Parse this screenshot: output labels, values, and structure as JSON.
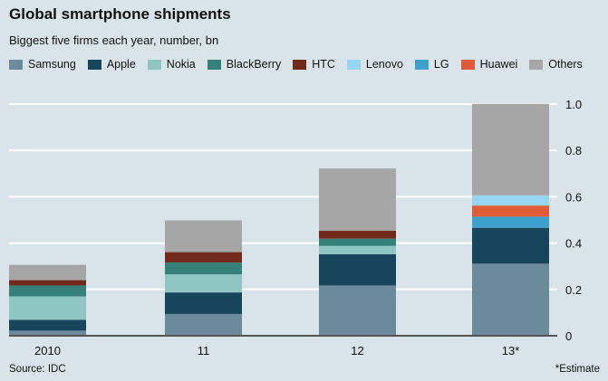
{
  "chart_data": {
    "type": "bar",
    "stacked": true,
    "title": "Global smartphone shipments",
    "subtitle": "Biggest five firms each year, number, bn",
    "categories": [
      "2010",
      "11",
      "12",
      "13*"
    ],
    "series": [
      {
        "name": "Samsung",
        "color": "#6b8a9b",
        "values": [
          0.022,
          0.094,
          0.217,
          0.311
        ]
      },
      {
        "name": "Apple",
        "color": "#17455b",
        "values": [
          0.047,
          0.093,
          0.135,
          0.155
        ]
      },
      {
        "name": "Nokia",
        "color": "#8fc6c4",
        "values": [
          0.101,
          0.078,
          0.036,
          0
        ]
      },
      {
        "name": "BlackBerry",
        "color": "#35817a",
        "values": [
          0.047,
          0.051,
          0.031,
          0
        ]
      },
      {
        "name": "HTC",
        "color": "#722b1a",
        "values": [
          0.023,
          0.045,
          0.034,
          0
        ]
      },
      {
        "name": "Lenovo",
        "color": "#97d6f0",
        "values": [
          0,
          0,
          0,
          0.044
        ]
      },
      {
        "name": "LG",
        "color": "#3ea0cc",
        "values": [
          0,
          0,
          0,
          0.048
        ]
      },
      {
        "name": "Huawei",
        "color": "#e05b37",
        "values": [
          0,
          0,
          0,
          0.048
        ]
      },
      {
        "name": "Others",
        "color": "#a6a6a6",
        "values": [
          0.066,
          0.137,
          0.269,
          0.395
        ]
      }
    ],
    "stack_order": [
      "Samsung",
      "Apple",
      "Nokia",
      "BlackBerry",
      "HTC",
      "LG",
      "Huawei",
      "Lenovo",
      "Others"
    ],
    "ylim": [
      0,
      1.0
    ],
    "yticks": [
      "0",
      "0.2",
      "0.4",
      "0.6",
      "0.8",
      "1.0"
    ],
    "grid": true,
    "legend": "top",
    "source": "Source: IDC",
    "note": "*Estimate"
  }
}
